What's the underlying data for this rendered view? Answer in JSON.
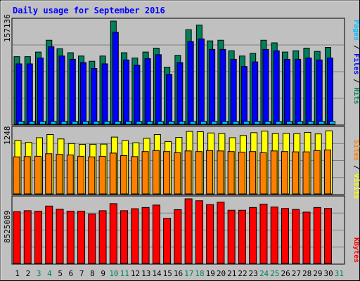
{
  "title": "Daily usage for September 2016",
  "colors": {
    "background": "#c0c0c0",
    "title": "#0000ff",
    "grid": "#808080",
    "hits": "#00805c",
    "files": "#0000ff",
    "pages": "#00c0ff",
    "visits": "#ffff00",
    "sites": "#ff8000",
    "kbytes": "#ff0000",
    "weekend_label": "#00805c",
    "weekday_label": "#000000"
  },
  "days": [
    "1",
    "2",
    "3",
    "4",
    "5",
    "6",
    "7",
    "8",
    "9",
    "10",
    "11",
    "12",
    "13",
    "14",
    "15",
    "16",
    "17",
    "18",
    "19",
    "20",
    "21",
    "22",
    "23",
    "24",
    "25",
    "26",
    "27",
    "28",
    "29",
    "30",
    "31"
  ],
  "weekend_days": [
    3,
    4,
    10,
    11,
    17,
    18,
    24,
    25,
    31
  ],
  "chart_data": [
    {
      "type": "bar",
      "name": "hits-files-pages",
      "y_max_label": "157136",
      "ylim": [
        0,
        157136
      ],
      "legend": [
        {
          "label": "Pages",
          "color_key": "pages"
        },
        {
          "label": "Files",
          "color_key": "files"
        },
        {
          "label": "Hits",
          "color_key": "hits"
        }
      ],
      "series": [
        {
          "name": "Hits",
          "values": [
            103000,
            103000,
            110000,
            128000,
            115000,
            109000,
            104000,
            96000,
            104000,
            157136,
            109000,
            101000,
            110000,
            116000,
            87000,
            105000,
            144000,
            151000,
            127000,
            128000,
            112000,
            104000,
            108000,
            128000,
            124000,
            110000,
            112000,
            116000,
            111000,
            117000,
            0
          ]
        },
        {
          "name": "Files",
          "values": [
            92000,
            92000,
            101000,
            118000,
            104000,
            99000,
            94000,
            85000,
            92000,
            140000,
            98000,
            90000,
            100000,
            106000,
            76000,
            94000,
            126000,
            130000,
            114000,
            114000,
            99000,
            88000,
            95000,
            114000,
            112000,
            99000,
            99000,
            101000,
            98000,
            101000,
            0
          ]
        },
        {
          "name": "Pages",
          "values": [
            4500,
            4500,
            4500,
            4500,
            4500,
            4500,
            4500,
            4500,
            4500,
            4500,
            4500,
            4500,
            4500,
            4500,
            4500,
            4500,
            4500,
            4500,
            4500,
            4500,
            4500,
            4500,
            4500,
            4500,
            4500,
            4500,
            4500,
            4500,
            4500,
            4500,
            0
          ]
        }
      ]
    },
    {
      "type": "bar",
      "name": "visits-sites",
      "y_max_label": "1248",
      "ylim": [
        0,
        1248
      ],
      "legend": [
        {
          "label": "Sites",
          "color_key": "sites"
        },
        {
          "label": "Visits",
          "color_key": "visits"
        }
      ],
      "series": [
        {
          "name": "Visits",
          "values": [
            1030,
            994,
            1085,
            1146,
            1061,
            973,
            955,
            958,
            961,
            1097,
            1030,
            988,
            1073,
            1146,
            1012,
            1091,
            1206,
            1200,
            1176,
            1164,
            1085,
            1128,
            1182,
            1212,
            1164,
            1170,
            1164,
            1188,
            1158,
            1218,
            0
          ]
        },
        {
          "name": "Sites",
          "values": [
            715,
            721,
            727,
            776,
            764,
            751,
            727,
            715,
            727,
            788,
            740,
            721,
            818,
            837,
            818,
            794,
            830,
            818,
            837,
            830,
            818,
            806,
            818,
            794,
            830,
            818,
            812,
            812,
            837,
            849,
            0
          ]
        }
      ]
    },
    {
      "type": "bar",
      "name": "kbytes",
      "y_max_label": "8525089",
      "ylim": [
        0,
        8525089
      ],
      "legend": [
        {
          "label": "KBytes",
          "color_key": "kbytes"
        }
      ],
      "series": [
        {
          "name": "KBytes",
          "values": [
            6830000,
            6960000,
            6900000,
            7570000,
            7150000,
            6900000,
            6900000,
            6520000,
            6960000,
            7890000,
            6960000,
            7220000,
            7380000,
            7700000,
            5950000,
            7090000,
            8525089,
            8270000,
            7760000,
            8080000,
            7020000,
            7020000,
            7380000,
            7830000,
            7440000,
            7250000,
            7120000,
            6770000,
            7380000,
            7250000,
            0
          ]
        }
      ]
    }
  ]
}
